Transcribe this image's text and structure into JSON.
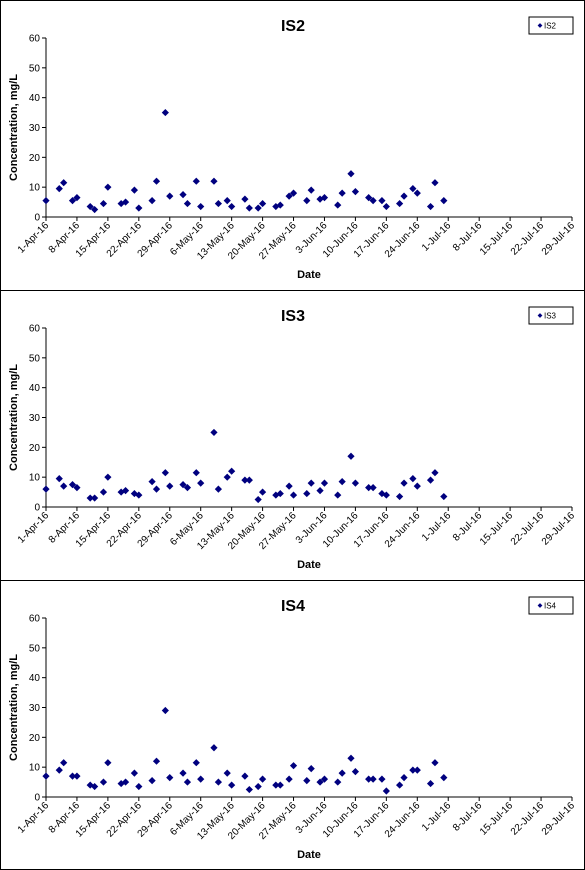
{
  "chart_data": [
    {
      "type": "scatter",
      "title": "IS2",
      "xlabel": "Date",
      "ylabel": "Concentration, mg/L",
      "ylim": [
        0,
        60
      ],
      "yticks": [
        "0",
        "10",
        "20",
        "30",
        "40",
        "50",
        "60"
      ],
      "xticks": [
        "1-Apr-16",
        "8-Apr-16",
        "15-Apr-16",
        "22-Apr-16",
        "29-Apr-16",
        "6-May-16",
        "13-May-16",
        "20-May-16",
        "27-May-16",
        "3-Jun-16",
        "10-Jun-16",
        "17-Jun-16",
        "24-Jun-16",
        "1-Jul-16",
        "8-Jul-16",
        "15-Jul-16",
        "22-Jul-16",
        "29-Jul-16"
      ],
      "grid": false,
      "legend_position": "top-right",
      "series": [
        {
          "name": "IS2",
          "color": "#00007f",
          "points": [
            [
              "1-Apr-16",
              5.5
            ],
            [
              "4-Apr-16",
              9.5
            ],
            [
              "5-Apr-16",
              11.5
            ],
            [
              "7-Apr-16",
              5.5
            ],
            [
              "8-Apr-16",
              6.5
            ],
            [
              "11-Apr-16",
              3.5
            ],
            [
              "12-Apr-16",
              2.5
            ],
            [
              "14-Apr-16",
              4.5
            ],
            [
              "15-Apr-16",
              10
            ],
            [
              "18-Apr-16",
              4.5
            ],
            [
              "19-Apr-16",
              5
            ],
            [
              "21-Apr-16",
              9
            ],
            [
              "22-Apr-16",
              3
            ],
            [
              "25-Apr-16",
              5.5
            ],
            [
              "26-Apr-16",
              12
            ],
            [
              "28-Apr-16",
              35
            ],
            [
              "29-Apr-16",
              7
            ],
            [
              "2-May-16",
              7.5
            ],
            [
              "3-May-16",
              4.5
            ],
            [
              "5-May-16",
              12
            ],
            [
              "6-May-16",
              3.5
            ],
            [
              "9-May-16",
              12
            ],
            [
              "10-May-16",
              4.5
            ],
            [
              "12-May-16",
              5.5
            ],
            [
              "13-May-16",
              3.5
            ],
            [
              "16-May-16",
              6
            ],
            [
              "17-May-16",
              3
            ],
            [
              "19-May-16",
              3
            ],
            [
              "20-May-16",
              4.5
            ],
            [
              "23-May-16",
              3.5
            ],
            [
              "24-May-16",
              4
            ],
            [
              "26-May-16",
              7
            ],
            [
              "27-May-16",
              8
            ],
            [
              "30-May-16",
              5.5
            ],
            [
              "31-May-16",
              9
            ],
            [
              "2-Jun-16",
              6
            ],
            [
              "3-Jun-16",
              6.5
            ],
            [
              "6-Jun-16",
              4
            ],
            [
              "7-Jun-16",
              8
            ],
            [
              "9-Jun-16",
              14.5
            ],
            [
              "10-Jun-16",
              8.5
            ],
            [
              "13-Jun-16",
              6.5
            ],
            [
              "14-Jun-16",
              5.5
            ],
            [
              "16-Jun-16",
              5.5
            ],
            [
              "17-Jun-16",
              3.5
            ],
            [
              "20-Jun-16",
              4.5
            ],
            [
              "21-Jun-16",
              7
            ],
            [
              "23-Jun-16",
              9.5
            ],
            [
              "24-Jun-16",
              8
            ],
            [
              "27-Jun-16",
              3.5
            ],
            [
              "28-Jun-16",
              11.5
            ],
            [
              "30-Jun-16",
              5.5
            ]
          ]
        }
      ]
    },
    {
      "type": "scatter",
      "title": "IS3",
      "xlabel": "Date",
      "ylabel": "Concentration, mg/L",
      "ylim": [
        0,
        60
      ],
      "yticks": [
        "0",
        "10",
        "20",
        "30",
        "40",
        "50",
        "60"
      ],
      "xticks": [
        "1-Apr-16",
        "8-Apr-16",
        "15-Apr-16",
        "22-Apr-16",
        "29-Apr-16",
        "6-May-16",
        "13-May-16",
        "20-May-16",
        "27-May-16",
        "3-Jun-16",
        "10-Jun-16",
        "17-Jun-16",
        "24-Jun-16",
        "1-Jul-16",
        "8-Jul-16",
        "15-Jul-16",
        "22-Jul-16",
        "29-Jul-16"
      ],
      "grid": false,
      "legend_position": "top-right",
      "series": [
        {
          "name": "IS3",
          "color": "#00007f",
          "points": [
            [
              "1-Apr-16",
              6
            ],
            [
              "4-Apr-16",
              9.5
            ],
            [
              "5-Apr-16",
              7
            ],
            [
              "7-Apr-16",
              7.5
            ],
            [
              "8-Apr-16",
              6.5
            ],
            [
              "11-Apr-16",
              3
            ],
            [
              "12-Apr-16",
              3
            ],
            [
              "14-Apr-16",
              5
            ],
            [
              "15-Apr-16",
              10
            ],
            [
              "18-Apr-16",
              5
            ],
            [
              "19-Apr-16",
              5.5
            ],
            [
              "21-Apr-16",
              4.5
            ],
            [
              "22-Apr-16",
              4
            ],
            [
              "25-Apr-16",
              8.5
            ],
            [
              "26-Apr-16",
              6
            ],
            [
              "28-Apr-16",
              11.5
            ],
            [
              "29-Apr-16",
              7
            ],
            [
              "2-May-16",
              7.5
            ],
            [
              "3-May-16",
              6.5
            ],
            [
              "5-May-16",
              11.5
            ],
            [
              "6-May-16",
              8
            ],
            [
              "9-May-16",
              25
            ],
            [
              "10-May-16",
              6
            ],
            [
              "12-May-16",
              10
            ],
            [
              "13-May-16",
              12
            ],
            [
              "16-May-16",
              9
            ],
            [
              "17-May-16",
              9
            ],
            [
              "19-May-16",
              2.5
            ],
            [
              "20-May-16",
              5
            ],
            [
              "23-May-16",
              4
            ],
            [
              "24-May-16",
              4.5
            ],
            [
              "26-May-16",
              7
            ],
            [
              "27-May-16",
              4
            ],
            [
              "30-May-16",
              4.5
            ],
            [
              "31-May-16",
              8
            ],
            [
              "2-Jun-16",
              5.5
            ],
            [
              "3-Jun-16",
              8
            ],
            [
              "6-Jun-16",
              4
            ],
            [
              "7-Jun-16",
              8.5
            ],
            [
              "9-Jun-16",
              17
            ],
            [
              "10-Jun-16",
              8
            ],
            [
              "13-Jun-16",
              6.5
            ],
            [
              "14-Jun-16",
              6.5
            ],
            [
              "16-Jun-16",
              4.5
            ],
            [
              "17-Jun-16",
              4
            ],
            [
              "20-Jun-16",
              3.5
            ],
            [
              "21-Jun-16",
              8
            ],
            [
              "23-Jun-16",
              9.5
            ],
            [
              "24-Jun-16",
              7
            ],
            [
              "27-Jun-16",
              9
            ],
            [
              "28-Jun-16",
              11.5
            ],
            [
              "30-Jun-16",
              3.5
            ]
          ]
        }
      ]
    },
    {
      "type": "scatter",
      "title": "IS4",
      "xlabel": "Date",
      "ylabel": "Concentration, mg/L",
      "ylim": [
        0,
        60
      ],
      "yticks": [
        "0",
        "10",
        "20",
        "30",
        "40",
        "50",
        "60"
      ],
      "xticks": [
        "1-Apr-16",
        "8-Apr-16",
        "15-Apr-16",
        "22-Apr-16",
        "29-Apr-16",
        "6-May-16",
        "13-May-16",
        "20-May-16",
        "27-May-16",
        "3-Jun-16",
        "10-Jun-16",
        "17-Jun-16",
        "24-Jun-16",
        "1-Jul-16",
        "8-Jul-16",
        "15-Jul-16",
        "22-Jul-16",
        "29-Jul-16"
      ],
      "grid": false,
      "legend_position": "top-right",
      "series": [
        {
          "name": "IS4",
          "color": "#00007f",
          "points": [
            [
              "1-Apr-16",
              7
            ],
            [
              "4-Apr-16",
              9
            ],
            [
              "5-Apr-16",
              11.5
            ],
            [
              "7-Apr-16",
              7
            ],
            [
              "8-Apr-16",
              7
            ],
            [
              "11-Apr-16",
              4
            ],
            [
              "12-Apr-16",
              3.5
            ],
            [
              "14-Apr-16",
              5
            ],
            [
              "15-Apr-16",
              11.5
            ],
            [
              "18-Apr-16",
              4.5
            ],
            [
              "19-Apr-16",
              5
            ],
            [
              "21-Apr-16",
              8
            ],
            [
              "22-Apr-16",
              3.5
            ],
            [
              "25-Apr-16",
              5.5
            ],
            [
              "26-Apr-16",
              12
            ],
            [
              "28-Apr-16",
              29
            ],
            [
              "29-Apr-16",
              6.5
            ],
            [
              "2-May-16",
              8
            ],
            [
              "3-May-16",
              5
            ],
            [
              "5-May-16",
              11.5
            ],
            [
              "6-May-16",
              6
            ],
            [
              "9-May-16",
              16.5
            ],
            [
              "10-May-16",
              5
            ],
            [
              "12-May-16",
              8
            ],
            [
              "13-May-16",
              4
            ],
            [
              "16-May-16",
              7
            ],
            [
              "17-May-16",
              2.5
            ],
            [
              "19-May-16",
              3.5
            ],
            [
              "20-May-16",
              6
            ],
            [
              "23-May-16",
              4
            ],
            [
              "24-May-16",
              4
            ],
            [
              "26-May-16",
              6
            ],
            [
              "27-May-16",
              10.5
            ],
            [
              "30-May-16",
              5.5
            ],
            [
              "31-May-16",
              9.5
            ],
            [
              "2-Jun-16",
              5
            ],
            [
              "3-Jun-16",
              6
            ],
            [
              "6-Jun-16",
              5
            ],
            [
              "7-Jun-16",
              8
            ],
            [
              "9-Jun-16",
              13
            ],
            [
              "10-Jun-16",
              8.5
            ],
            [
              "13-Jun-16",
              6
            ],
            [
              "14-Jun-16",
              6
            ],
            [
              "16-Jun-16",
              6
            ],
            [
              "17-Jun-16",
              2
            ],
            [
              "20-Jun-16",
              4
            ],
            [
              "21-Jun-16",
              6.5
            ],
            [
              "23-Jun-16",
              9
            ],
            [
              "24-Jun-16",
              9
            ],
            [
              "27-Jun-16",
              4.5
            ],
            [
              "28-Jun-16",
              11.5
            ],
            [
              "30-Jun-16",
              6.5
            ]
          ]
        }
      ]
    }
  ]
}
